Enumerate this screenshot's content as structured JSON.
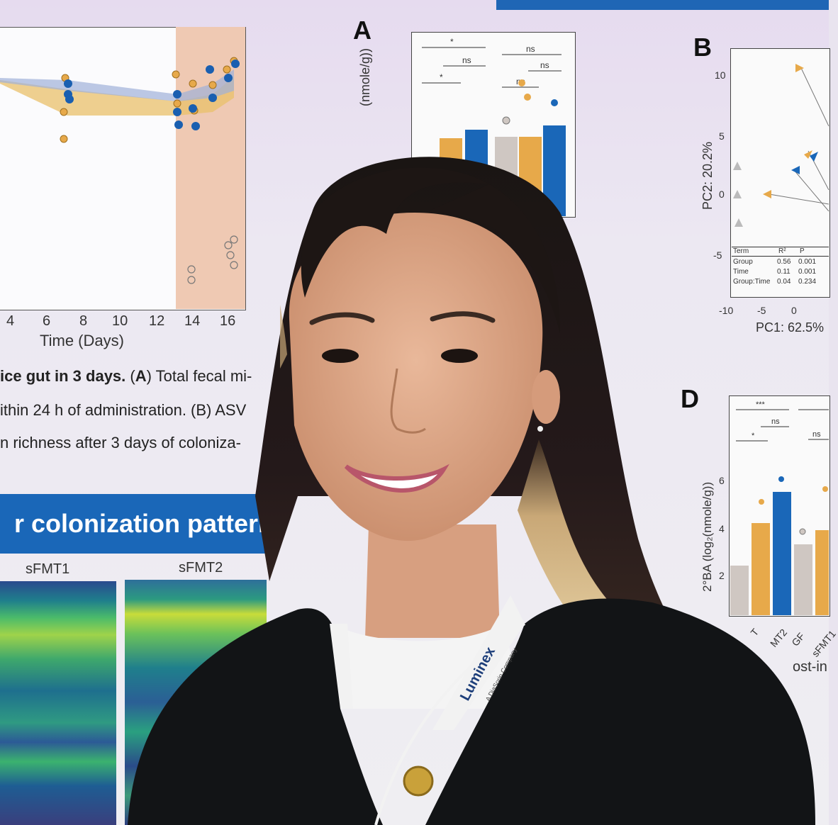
{
  "poster": {
    "left_plot": {
      "x_ticks": [
        "4",
        "6",
        "8",
        "10",
        "12",
        "14",
        "16"
      ],
      "x_label": "Time (Days)"
    },
    "caption_lines": [
      {
        "bold": "ice gut in 3 days.",
        "rest_prefix": " (",
        "rest_bold": "A",
        "rest": ") Total fecal mi-"
      },
      {
        "bold": "",
        "rest_prefix": "",
        "rest_bold": "",
        "rest": "ithin 24 h of administration. (B) ASV"
      },
      {
        "bold": "",
        "rest_prefix": "",
        "rest_bold": "",
        "rest": "n richness after 3 days of coloniza-"
      }
    ],
    "banner": "r colonization pattern",
    "heatmap_labels": [
      "sFMT1",
      "sFMT2"
    ],
    "panel_A": {
      "letter": "A",
      "y_label": "(nmole/g))",
      "sig": [
        "*",
        "ns",
        "*",
        "ns",
        "ns",
        "ns"
      ]
    },
    "panel_B": {
      "letter": "B",
      "y_label": "PC2: 20.2%",
      "x_label": "PC1: 62.5%",
      "y_ticks": [
        "10",
        "5",
        "0",
        "-5"
      ],
      "x_ticks": [
        "-10",
        "-5",
        "0"
      ],
      "table": {
        "headers": [
          "Term",
          "R²",
          "P"
        ],
        "rows": [
          [
            "Group",
            "0.56",
            "0.001"
          ],
          [
            "Time",
            "0.11",
            "0.001"
          ],
          [
            "Group:Time",
            "0.04",
            "0.234"
          ]
        ]
      }
    },
    "panel_D": {
      "letter": "D",
      "y_label": "2°BA (log₂(nmole/g))",
      "y_ticks": [
        "6",
        "4",
        "2"
      ],
      "sig": [
        "***",
        "ns",
        "*",
        "ns"
      ],
      "x_ticks": [
        "T",
        "MT2",
        "GF",
        "sFMT1"
      ],
      "footer": "ost-in"
    }
  },
  "lanyard_text": {
    "brand": "Luminex",
    "sub": "A DiaSorin Company"
  },
  "colors": {
    "accent_blue": "#1a67b8",
    "orange": "#e7a94a",
    "shade": "#efc9b3"
  }
}
